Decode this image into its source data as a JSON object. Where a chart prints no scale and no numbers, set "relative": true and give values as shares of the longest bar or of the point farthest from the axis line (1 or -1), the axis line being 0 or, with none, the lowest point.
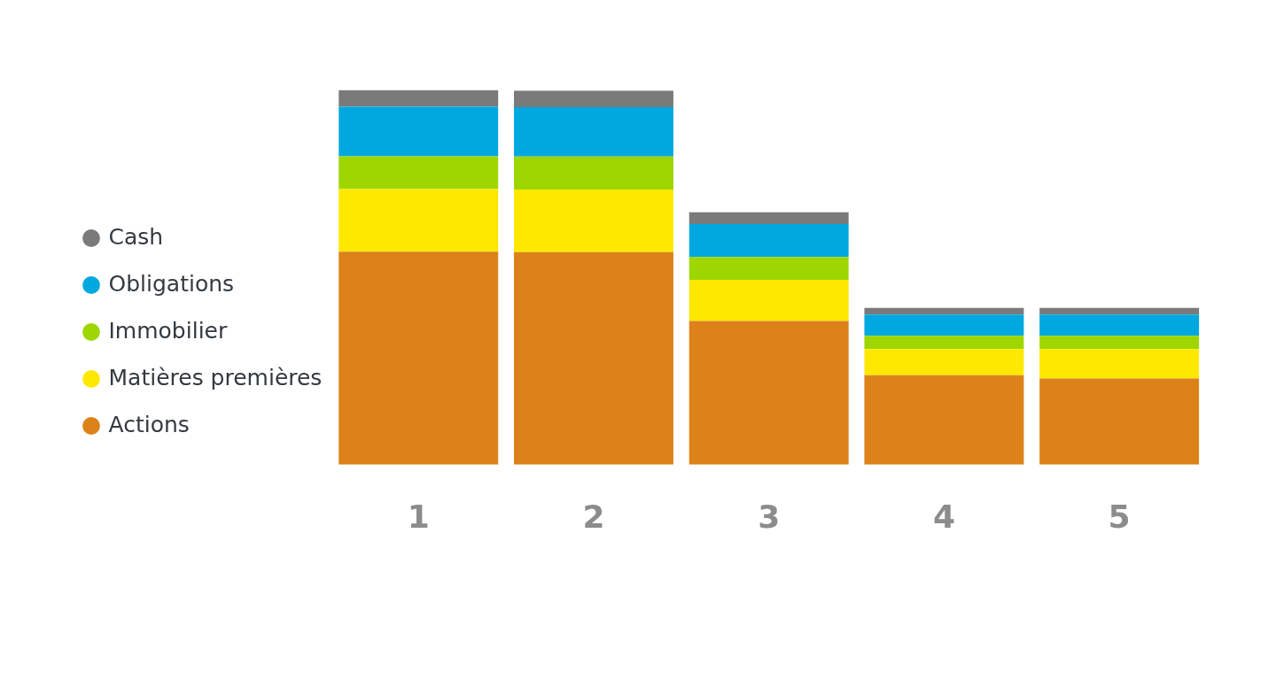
{
  "chart_data": {
    "type": "bar",
    "stacked": true,
    "relative": true,
    "legend": "left",
    "grid": false,
    "categories": [
      "1",
      "2",
      "3",
      "4",
      "5"
    ],
    "series": [
      {
        "name": "Actions",
        "color": "#dc8219",
        "values": [
          0.569,
          0.568,
          0.384,
          0.239,
          0.23
        ]
      },
      {
        "name": "Matières premières",
        "color": "#ffe800",
        "values": [
          0.167,
          0.167,
          0.11,
          0.07,
          0.079
        ]
      },
      {
        "name": "Immobilier",
        "color": "#9dd600",
        "values": [
          0.088,
          0.088,
          0.061,
          0.035,
          0.035
        ]
      },
      {
        "name": "Obligations",
        "color": "#00a8e0",
        "values": [
          0.132,
          0.132,
          0.088,
          0.057,
          0.057
        ]
      },
      {
        "name": "Cash",
        "color": "#7a7a7a",
        "values": [
          0.044,
          0.044,
          0.031,
          0.018,
          0.018
        ]
      }
    ]
  }
}
